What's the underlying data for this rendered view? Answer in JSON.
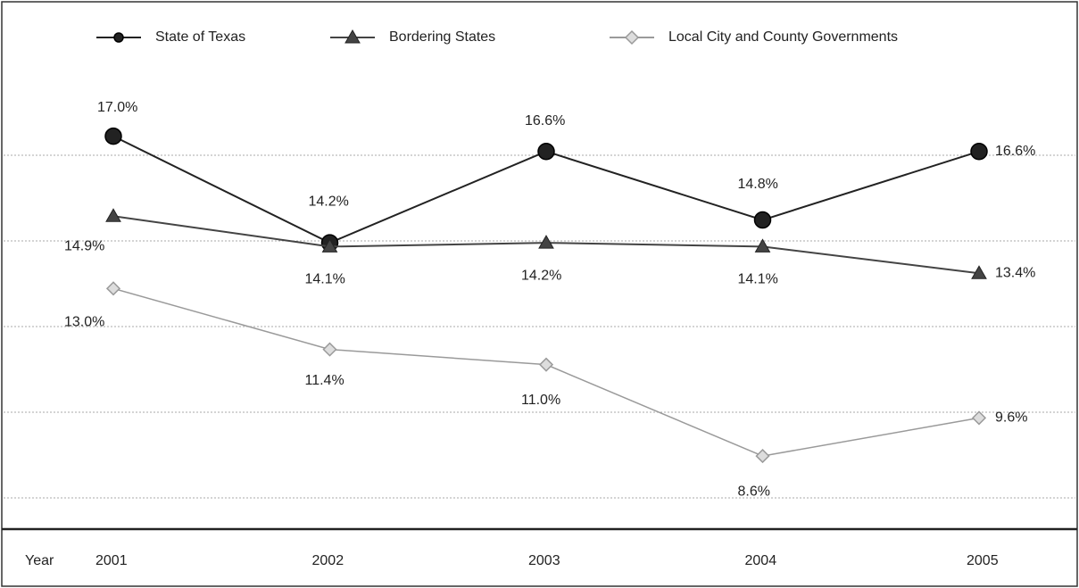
{
  "chart_data": {
    "type": "line",
    "x_label": "Year",
    "categories": [
      "2001",
      "2002",
      "2003",
      "2004",
      "2005"
    ],
    "series": [
      {
        "name": "State of Texas",
        "color": "#222222",
        "marker": "circle",
        "values": [
          17.0,
          14.2,
          16.6,
          14.8,
          16.6
        ],
        "value_labels": [
          "17.0%",
          "14.2%",
          "16.6%",
          "14.8%",
          "16.6%"
        ]
      },
      {
        "name": "Bordering States",
        "color": "#444444",
        "marker": "triangle",
        "values": [
          14.9,
          14.1,
          14.2,
          14.1,
          13.4
        ],
        "value_labels": [
          "14.9%",
          "14.1%",
          "14.2%",
          "14.1%",
          "13.4%"
        ]
      },
      {
        "name": "Local City and County Governments",
        "color": "#9a9a9a",
        "marker": "diamond",
        "values": [
          13.0,
          11.4,
          11.0,
          8.6,
          9.6
        ],
        "value_labels": [
          "13.0%",
          "11.4%",
          "11.0%",
          "8.6%",
          "9.6%"
        ]
      }
    ],
    "ylim": [
      6.75,
      18.0
    ],
    "yticks": [
      7.5,
      9.75,
      12,
      14.25,
      16.5
    ],
    "grid": true,
    "legend": "top"
  }
}
